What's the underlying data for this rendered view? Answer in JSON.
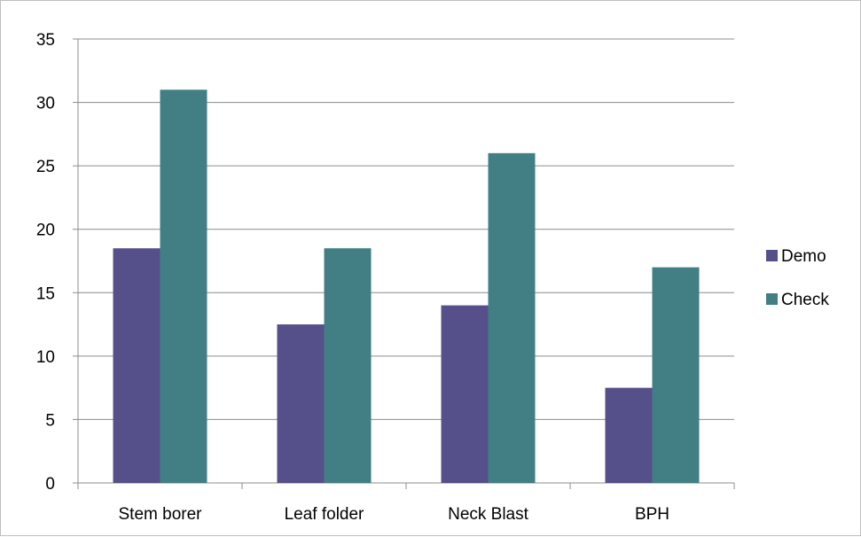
{
  "chart_data": {
    "type": "bar",
    "categories": [
      "Stem borer",
      "Leaf folder",
      "Neck Blast",
      "BPH"
    ],
    "series": [
      {
        "name": "Demo",
        "values": [
          18.5,
          12.5,
          14,
          7.5
        ],
        "color": "#55508a"
      },
      {
        "name": "Check",
        "values": [
          31,
          18.5,
          26,
          17
        ],
        "color": "#417f84"
      }
    ],
    "title": "",
    "xlabel": "",
    "ylabel": "",
    "ylim": [
      0,
      35
    ],
    "yticks": [
      0,
      5,
      10,
      15,
      20,
      25,
      30,
      35
    ],
    "grid": true,
    "legend_position": "right",
    "gridline_color": "#8c8c8c"
  }
}
